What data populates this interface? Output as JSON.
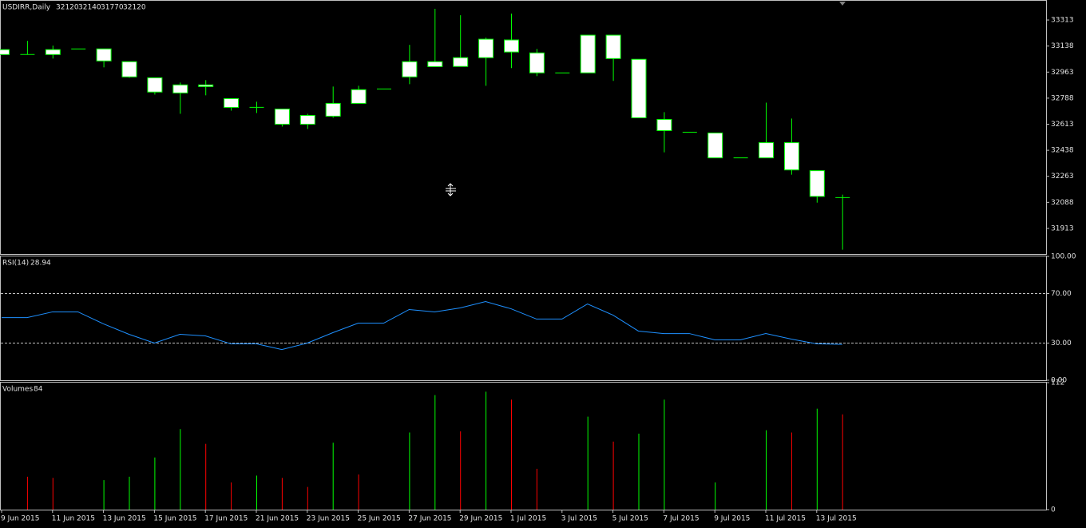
{
  "chart_data": [
    {
      "type": "candlestick",
      "title": "USDIRR,Daily",
      "categories": [
        "9 Jun 2015",
        null,
        "11 Jun 2015",
        null,
        "13 Jun 2015",
        null,
        "15 Jun 2015",
        null,
        "17 Jun 2015",
        null,
        "21 Jun 2015",
        null,
        "23 Jun 2015",
        null,
        "25 Jun 2015",
        null,
        "27 Jun 2015",
        null,
        "29 Jun 2015",
        null,
        "1 Jul 2015",
        null,
        "3 Jul 2015",
        null,
        "5 Jul 2015",
        null,
        "7 Jul 2015",
        null,
        "9 Jul 2015",
        null,
        "11 Jul 2015",
        null,
        "13 Jul 2015",
        null
      ],
      "open": [
        33114,
        33081,
        33081,
        33119,
        33119,
        33033,
        32925,
        32823,
        32877,
        32785,
        32726,
        32715,
        32613,
        32667,
        32753,
        32850,
        32931,
        33000,
        33001,
        33060,
        33179,
        33092,
        32958,
        32958,
        33211,
        33049,
        32645,
        32559,
        32554,
        32387,
        32387,
        32489,
        32301,
        32120
      ],
      "high": [
        33114,
        33173,
        33141,
        33119,
        33119,
        33033,
        32925,
        32893,
        32909,
        32785,
        32764,
        32715,
        32683,
        32866,
        32871,
        32850,
        33146,
        33388,
        33345,
        33195,
        33356,
        33119,
        32958,
        33211,
        33211,
        33049,
        32694,
        32559,
        32554,
        32387,
        32758,
        32651,
        32301,
        32140
      ],
      "low": [
        33081,
        33081,
        33054,
        33119,
        32995,
        32925,
        32812,
        32683,
        32807,
        32704,
        32688,
        32597,
        32581,
        32656,
        32753,
        32850,
        32882,
        33000,
        33001,
        32871,
        32990,
        32936,
        32958,
        32958,
        32904,
        32656,
        32424,
        32559,
        32387,
        32387,
        32387,
        32274,
        32086,
        31770
      ],
      "close": [
        33081,
        33081,
        33114,
        33119,
        33038,
        32931,
        32829,
        32877,
        32866,
        32726,
        32726,
        32613,
        32672,
        32753,
        32845,
        32850,
        33033,
        33033,
        33060,
        33184,
        33098,
        32958,
        32958,
        33211,
        33054,
        32656,
        32570,
        32559,
        32387,
        32387,
        32489,
        32306,
        32128,
        32120
      ],
      "color": "#00ff00",
      "body_color": "#ffffff",
      "ylim": [
        31741,
        33442
      ],
      "yticks": [
        31913,
        32088,
        32263,
        32438,
        32613,
        32788,
        32963,
        33138,
        33313
      ]
    },
    {
      "type": "line",
      "title": "RSI(14)",
      "values": [
        50.6,
        50.6,
        55.2,
        55.2,
        45.5,
        37.1,
        30.0,
        37.1,
        35.8,
        29.4,
        29.4,
        24.8,
        30.0,
        38.4,
        46.1,
        46.1,
        57.1,
        55.2,
        58.4,
        63.5,
        57.7,
        49.4,
        49.4,
        61.6,
        52.6,
        39.7,
        37.7,
        37.7,
        32.6,
        32.6,
        37.7,
        33.2,
        29.4,
        28.94
      ],
      "color": "#1e90ff",
      "levels": [
        70,
        30
      ],
      "ylim": [
        0,
        100
      ],
      "yticks": [
        {
          "value": 0,
          "label": "0.00"
        },
        {
          "value": 30,
          "label": "30.00"
        },
        {
          "value": 70,
          "label": "70.00"
        },
        {
          "value": 100,
          "label": "100.00"
        }
      ]
    },
    {
      "type": "bar",
      "title": "Volumes",
      "values": [
        0,
        29,
        28,
        0,
        26,
        29,
        46,
        71,
        58,
        24,
        30,
        28,
        20,
        59,
        31,
        0,
        68,
        101,
        69,
        104,
        97,
        36,
        0,
        82,
        60,
        67,
        97,
        0,
        24,
        0,
        70,
        68,
        89,
        84
      ],
      "colors": [
        "#00ff00",
        "#ff0000",
        "#ff0000",
        "#00ff00",
        "#00ff00",
        "#00ff00",
        "#00ff00",
        "#00ff00",
        "#ff0000",
        "#ff0000",
        "#00ff00",
        "#ff0000",
        "#ff0000",
        "#00ff00",
        "#ff0000",
        "#00ff00",
        "#00ff00",
        "#00ff00",
        "#ff0000",
        "#00ff00",
        "#ff0000",
        "#ff0000",
        "#00ff00",
        "#00ff00",
        "#ff0000",
        "#00ff00",
        "#00ff00",
        "#00ff00",
        "#00ff00",
        "#00ff00",
        "#00ff00",
        "#ff0000",
        "#00ff00",
        "#ff0000"
      ],
      "ylim": [
        0,
        112
      ],
      "yticks": [
        0,
        112
      ]
    }
  ]
}
